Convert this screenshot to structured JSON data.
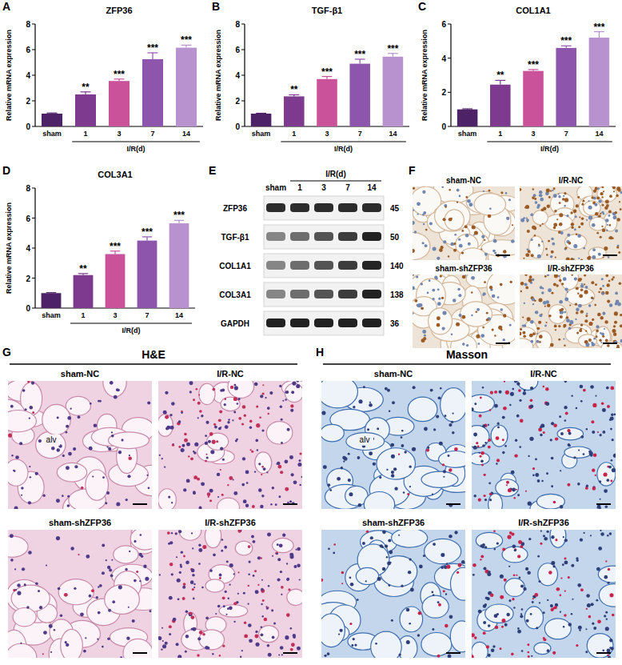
{
  "chart_data": [
    {
      "type": "bar",
      "panel_label": "A",
      "title": "ZFP36",
      "ylabel": "Relative mRNA expression",
      "xlabel": "I/R(d)",
      "categories": [
        "sham",
        "1",
        "3",
        "7",
        "14"
      ],
      "values": [
        1,
        2.5,
        3.55,
        5.25,
        6.15
      ],
      "errors": [
        0.05,
        0.2,
        0.15,
        0.5,
        0.2
      ],
      "significance": [
        null,
        "**",
        "***",
        "***",
        "***"
      ],
      "colors": [
        "#4e2267",
        "#7d3a8f",
        "#c9529a",
        "#8e55ad",
        "#b892cf"
      ],
      "ylim": [
        0,
        8
      ],
      "yticks": [
        0,
        2,
        4,
        6,
        8
      ]
    },
    {
      "type": "bar",
      "panel_label": "B",
      "title": "TGF-β1",
      "ylabel": "Relative mRNA expression",
      "xlabel": "I/R(d)",
      "categories": [
        "sham",
        "1",
        "3",
        "7",
        "14"
      ],
      "values": [
        1,
        2.35,
        3.7,
        4.9,
        5.45
      ],
      "errors": [
        0.03,
        0.12,
        0.2,
        0.35,
        0.25
      ],
      "significance": [
        null,
        "**",
        "***",
        "***",
        "***"
      ],
      "colors": [
        "#4e2267",
        "#7d3a8f",
        "#c9529a",
        "#8e55ad",
        "#b892cf"
      ],
      "ylim": [
        0,
        8
      ],
      "yticks": [
        0,
        2,
        4,
        6,
        8
      ]
    },
    {
      "type": "bar",
      "panel_label": "C",
      "title": "COL1A1",
      "ylabel": "Relative mRNA expression",
      "xlabel": "I/R(d)",
      "categories": [
        "sham",
        "1",
        "3",
        "7",
        "14"
      ],
      "values": [
        1,
        2.45,
        3.25,
        4.6,
        5.2
      ],
      "errors": [
        0.03,
        0.25,
        0.08,
        0.12,
        0.35
      ],
      "significance": [
        null,
        "**",
        "***",
        "***",
        "***"
      ],
      "colors": [
        "#4e2267",
        "#7d3a8f",
        "#c9529a",
        "#8e55ad",
        "#b892cf"
      ],
      "ylim": [
        0,
        6
      ],
      "yticks": [
        0,
        2,
        4,
        6
      ]
    },
    {
      "type": "bar",
      "panel_label": "D",
      "title": "COL3A1",
      "ylabel": "Relative mRNA expression",
      "xlabel": "I/R(d)",
      "categories": [
        "sham",
        "1",
        "3",
        "7",
        "14"
      ],
      "values": [
        1,
        2.2,
        3.6,
        4.5,
        5.65
      ],
      "errors": [
        0.03,
        0.1,
        0.2,
        0.25,
        0.2
      ],
      "significance": [
        null,
        "**",
        "***",
        "***",
        "***"
      ],
      "colors": [
        "#4e2267",
        "#7d3a8f",
        "#c9529a",
        "#8e55ad",
        "#b892cf"
      ],
      "ylim": [
        0,
        8
      ],
      "yticks": [
        0,
        2,
        4,
        6,
        8
      ]
    }
  ],
  "blot": {
    "panel_label": "E",
    "group_label": "I/R(d)",
    "lanes": [
      "sham",
      "1",
      "3",
      "7",
      "14"
    ],
    "rows": [
      {
        "name": "ZFP36",
        "kda": 45
      },
      {
        "name": "TGF-β1",
        "kda": 50
      },
      {
        "name": "COL1A1",
        "kda": 140
      },
      {
        "name": "COL3A1",
        "kda": 138
      },
      {
        "name": "GAPDH",
        "kda": 36
      }
    ]
  },
  "ihc": {
    "panel_label": "F",
    "images": [
      "sham-NC",
      "I/R-NC",
      "sham-shZFP36",
      "I/R-shZFP36"
    ]
  },
  "he": {
    "panel_label": "G",
    "title": "H&E",
    "images": [
      "sham-NC",
      "I/R-NC",
      "sham-shZFP36",
      "I/R-shZFP36"
    ],
    "annotation": "alv"
  },
  "masson": {
    "panel_label": "H",
    "title": "Masson",
    "images": [
      "sham-NC",
      "I/R-NC",
      "sham-shZFP36",
      "I/R-shZFP36"
    ],
    "annotation": "alv"
  }
}
